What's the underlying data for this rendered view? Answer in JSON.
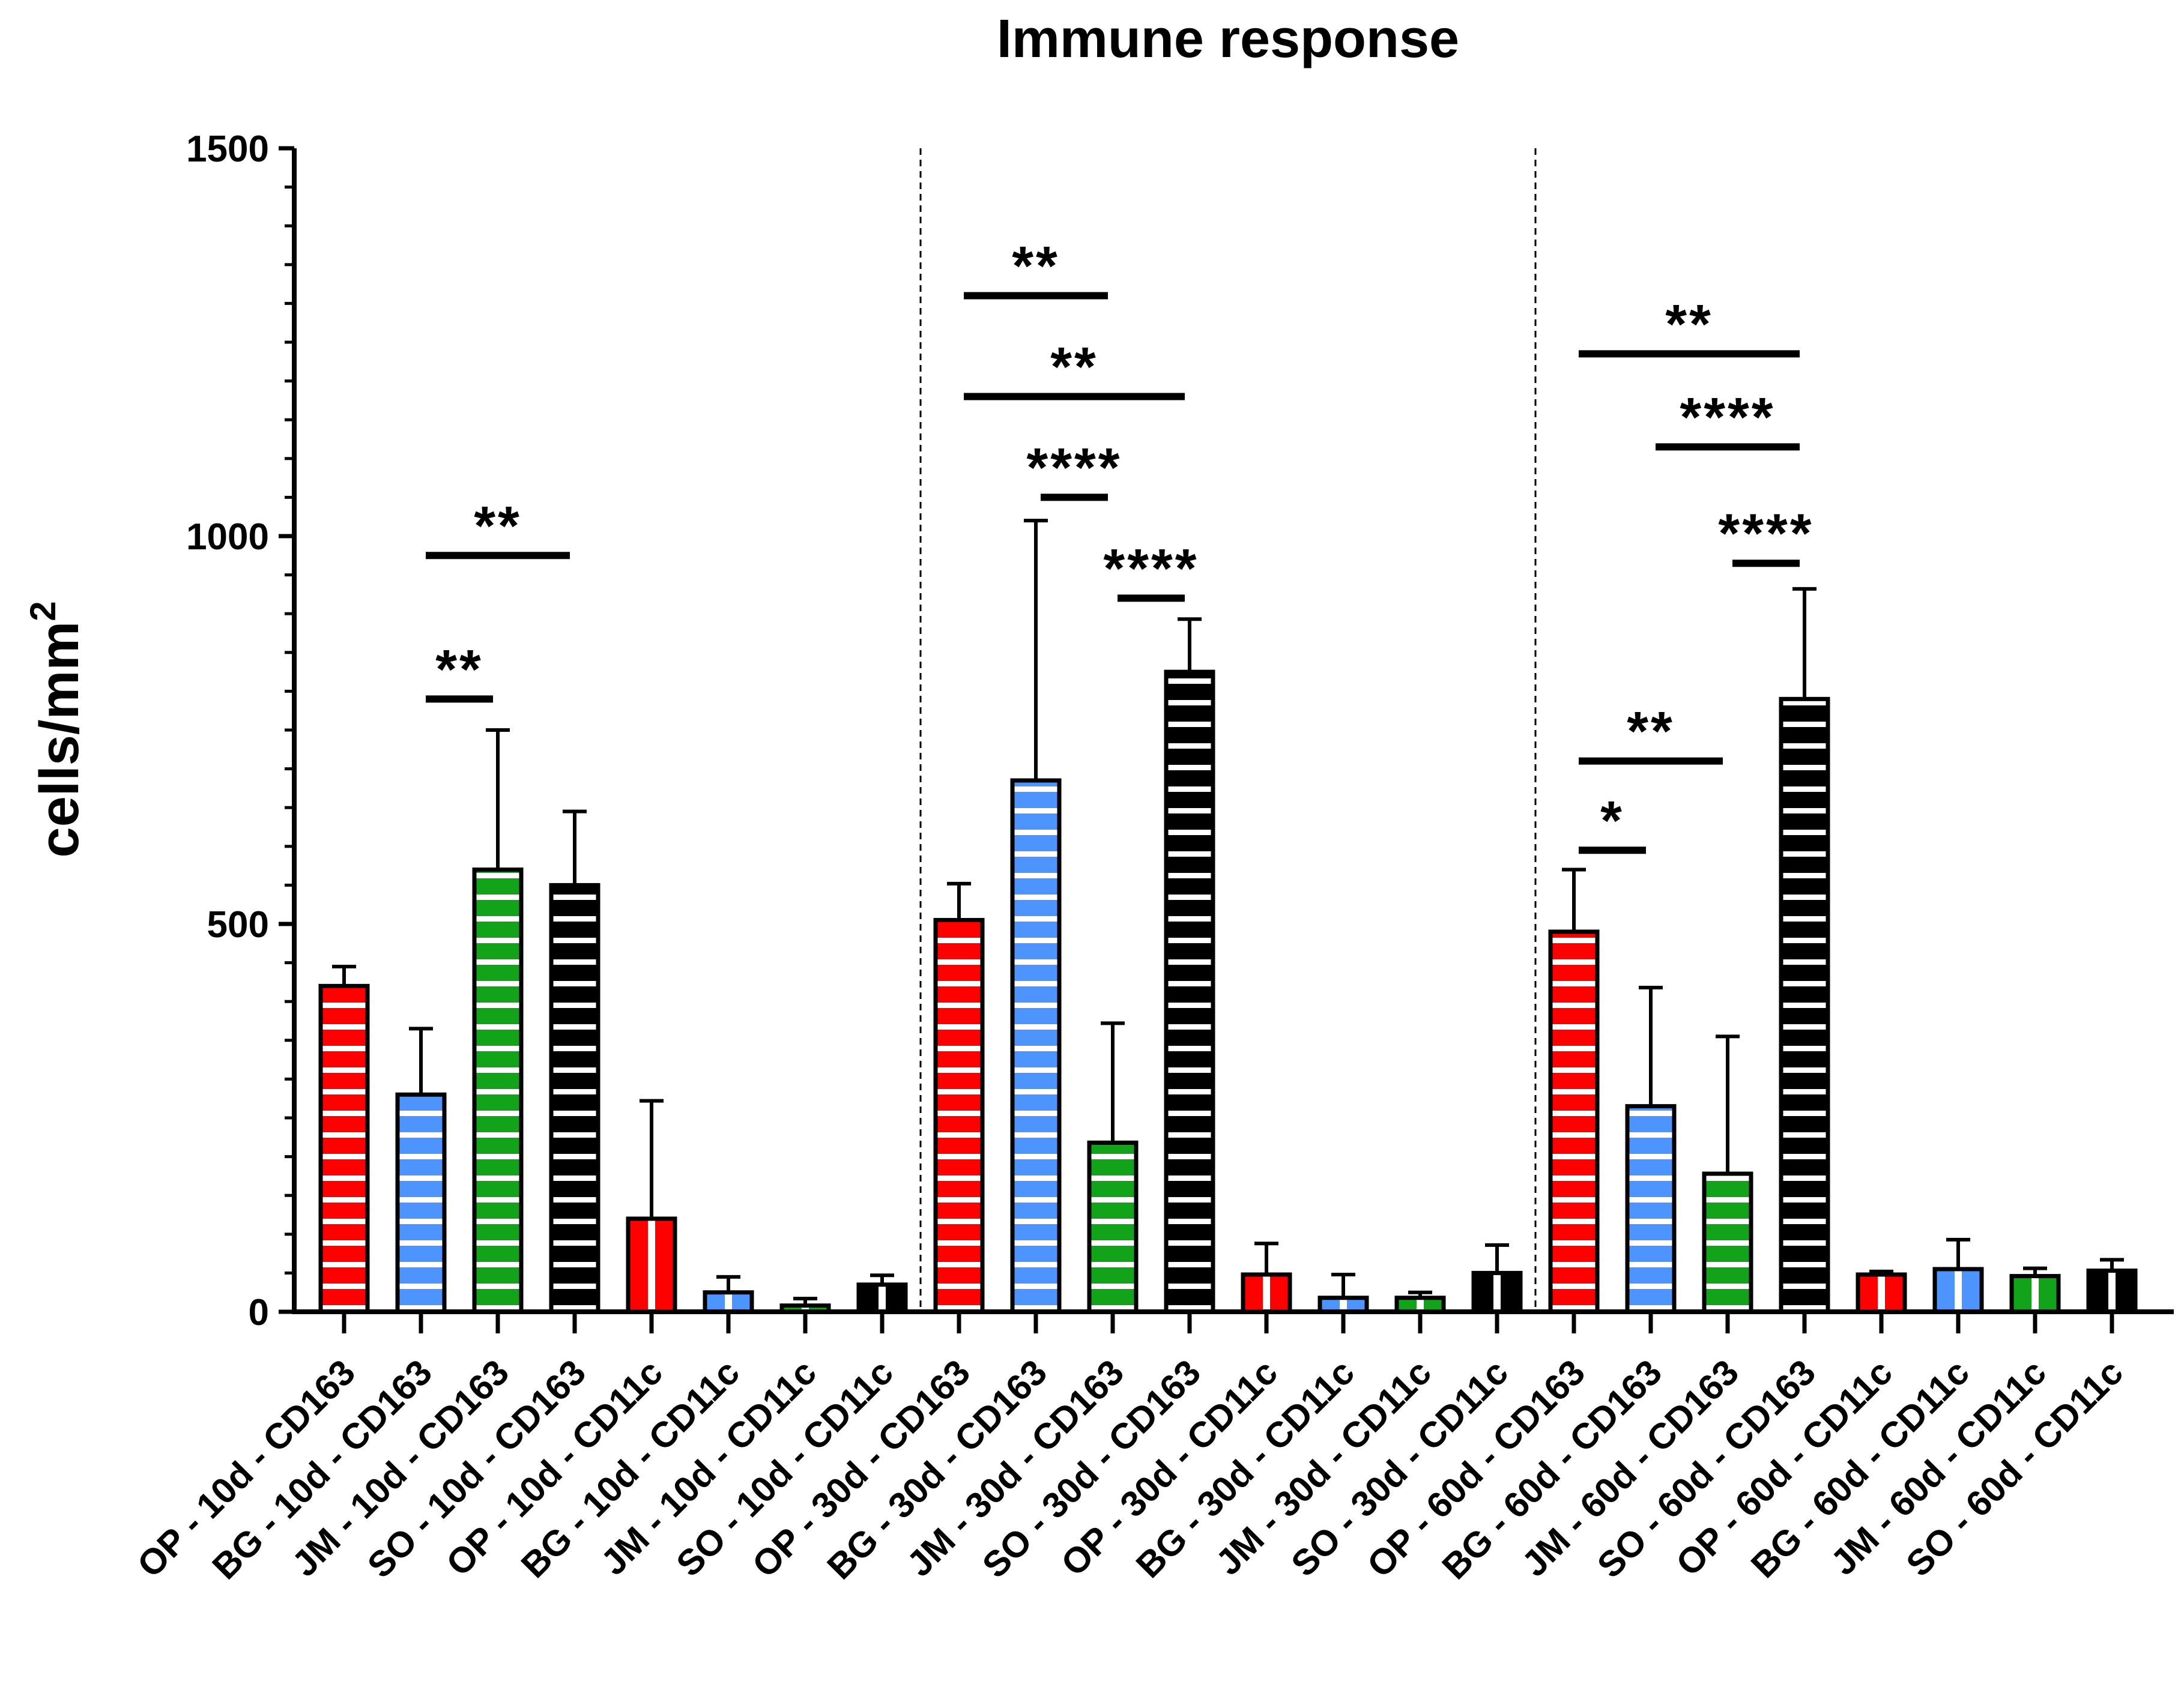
{
  "chart_data": {
    "type": "bar",
    "title": "Immune response",
    "ylabel": "cells/mm",
    "ylabel_superscript": "2",
    "xlabel": "",
    "ylim": [
      0,
      1500
    ],
    "yticks_major": [
      0,
      500,
      1000,
      1500
    ],
    "minor_tick_step": 50,
    "categories": [
      "OP - 10d - CD163",
      "BG - 10d - CD163",
      "JM - 10d - CD163",
      "SO - 10d - CD163",
      "OP - 10d - CD11c",
      "BG - 10d - CD11c",
      "JM - 10d - CD11c",
      "SO - 10d - CD11c",
      "OP - 30d - CD163",
      "BG - 30d - CD163",
      "JM - 30d - CD163",
      "SO - 30d - CD163",
      "OP - 30d - CD11c",
      "BG - 30d - CD11c",
      "JM - 30d - CD11c",
      "SO - 30d - CD11c",
      "OP - 60d - CD163",
      "BG - 60d - CD163",
      "JM - 60d - CD163",
      "SO - 60d - CD163",
      "OP - 60d - CD11c",
      "BG - 60d - CD11c",
      "JM - 60d - CD11c",
      "SO - 60d - CD11c"
    ],
    "values": [
      420,
      280,
      570,
      550,
      120,
      25,
      8,
      35,
      505,
      685,
      218,
      825,
      48,
      18,
      18,
      50,
      490,
      265,
      178,
      790,
      48,
      55,
      46,
      53
    ],
    "error_upper": [
      445,
      365,
      750,
      645,
      272,
      45,
      17,
      47,
      552,
      1020,
      372,
      893,
      88,
      48,
      25,
      86,
      570,
      418,
      355,
      932,
      52,
      93,
      56,
      67
    ],
    "group_colors": {
      "OP": "#ff0000",
      "BG": "#4d94ff",
      "JM": "#13a31a",
      "SO": "#000000"
    },
    "group_separators_after_index": [
      7,
      15
    ],
    "significance": [
      {
        "label": "**",
        "from": 1,
        "to": 3,
        "y": 975
      },
      {
        "label": "**",
        "from": 1,
        "to": 2,
        "y": 790
      },
      {
        "label": "**",
        "from": 8,
        "to": 10,
        "y": 1310
      },
      {
        "label": "**",
        "from": 8,
        "to": 11,
        "y": 1180
      },
      {
        "label": "****",
        "from": 9,
        "to": 10,
        "y": 1050
      },
      {
        "label": "****",
        "from": 10,
        "to": 11,
        "y": 920
      },
      {
        "label": "**",
        "from": 16,
        "to": 19,
        "y": 1235
      },
      {
        "label": "****",
        "from": 17,
        "to": 19,
        "y": 1115
      },
      {
        "label": "****",
        "from": 18,
        "to": 19,
        "y": 965
      },
      {
        "label": "**",
        "from": 16,
        "to": 18,
        "y": 710
      },
      {
        "label": "*",
        "from": 16,
        "to": 17,
        "y": 595
      }
    ]
  }
}
